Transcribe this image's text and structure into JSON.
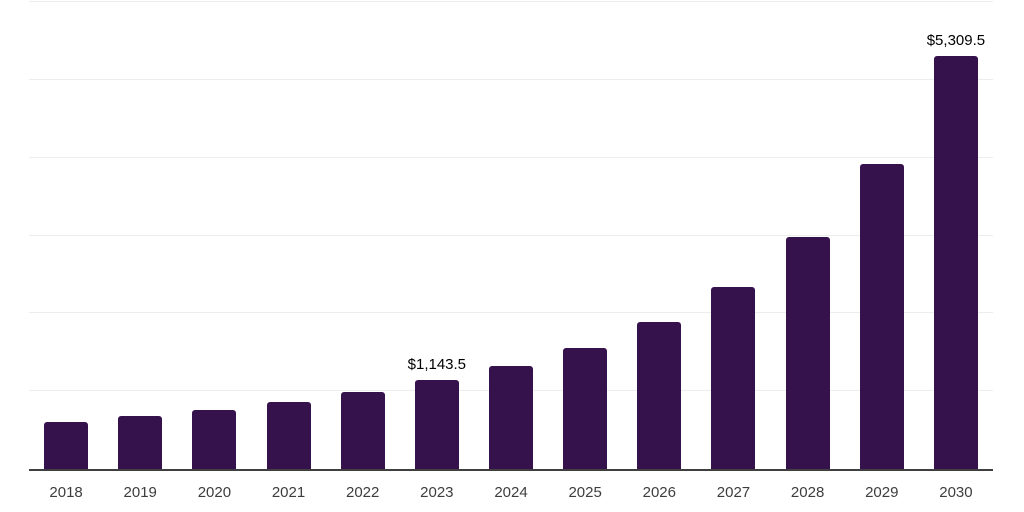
{
  "chart_data": {
    "type": "bar",
    "categories": [
      "2018",
      "2019",
      "2020",
      "2021",
      "2022",
      "2023",
      "2024",
      "2025",
      "2026",
      "2027",
      "2028",
      "2029",
      "2030"
    ],
    "values": [
      605,
      685,
      760,
      860,
      995,
      1143.5,
      1320,
      1555,
      1895,
      2335,
      2985,
      3925,
      5309.5
    ],
    "data_labels": [
      "",
      "",
      "",
      "",
      "",
      "$1,143.5",
      "",
      "",
      "",
      "",
      "",
      "",
      "$5,309.5"
    ],
    "title": "",
    "xlabel": "",
    "ylabel": "",
    "ylim": [
      0,
      6000
    ],
    "gridline_interval": 1000,
    "grid": true,
    "legend": false,
    "y_tick_labels_visible": false,
    "colors": {
      "bar": "#36124D",
      "gridline": "#EDEDED",
      "axis_line": "#404040",
      "data_label_text": "#000000",
      "tick_label_text": "#3D3D3D",
      "background": "#FFFFFF"
    }
  }
}
